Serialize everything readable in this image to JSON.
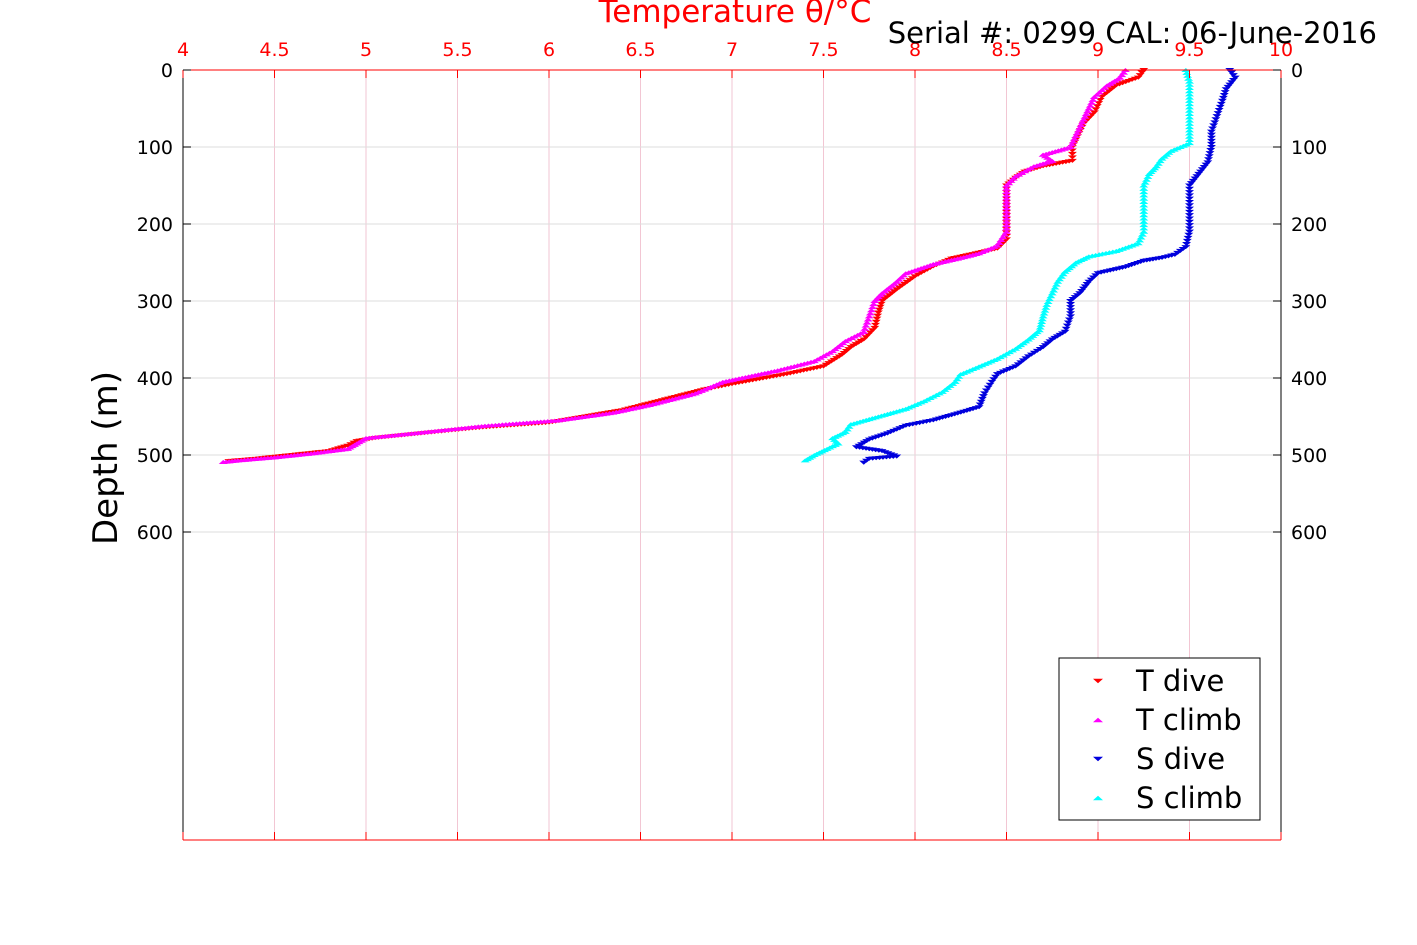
{
  "chart_data": {
    "type": "scatter",
    "title": "Temperature θ/°C",
    "subtitle": "Serial #: 0299 CAL: 06-June-2016",
    "xlabel": "Temperature θ/°C",
    "ylabel": "Depth (m)",
    "xlim": [
      4,
      10
    ],
    "ylim": [
      0,
      1000
    ],
    "y_reversed": true,
    "x_axis_position": "top",
    "x_ticks": [
      "4",
      "4.5",
      "5",
      "5.5",
      "6",
      "6.5",
      "7",
      "7.5",
      "8",
      "8.5",
      "9",
      "9.5",
      "10"
    ],
    "y_ticks": [
      "0",
      "100",
      "200",
      "300",
      "400",
      "500",
      "600"
    ],
    "grid": true,
    "legend_position": "bottom-right",
    "series": [
      {
        "name": "T dive",
        "color": "#ff0000",
        "marker": "triangle-down",
        "points": [
          [
            9.25,
            0
          ],
          [
            9.22,
            10
          ],
          [
            9.1,
            20
          ],
          [
            9.02,
            35
          ],
          [
            8.98,
            55
          ],
          [
            8.92,
            70
          ],
          [
            8.88,
            90
          ],
          [
            8.86,
            100
          ],
          [
            8.86,
            118
          ],
          [
            8.7,
            125
          ],
          [
            8.6,
            132
          ],
          [
            8.55,
            140
          ],
          [
            8.5,
            150
          ],
          [
            8.5,
            180
          ],
          [
            8.5,
            220
          ],
          [
            8.45,
            232
          ],
          [
            8.3,
            240
          ],
          [
            8.2,
            245
          ],
          [
            8.1,
            255
          ],
          [
            8.0,
            268
          ],
          [
            7.9,
            285
          ],
          [
            7.82,
            300
          ],
          [
            7.8,
            315
          ],
          [
            7.78,
            335
          ],
          [
            7.72,
            350
          ],
          [
            7.65,
            360
          ],
          [
            7.6,
            370
          ],
          [
            7.5,
            385
          ],
          [
            7.3,
            395
          ],
          [
            7.0,
            408
          ],
          [
            6.85,
            415
          ],
          [
            6.6,
            430
          ],
          [
            6.4,
            442
          ],
          [
            6.2,
            450
          ],
          [
            6.0,
            458
          ],
          [
            5.6,
            465
          ],
          [
            5.3,
            472
          ],
          [
            5.05,
            478
          ],
          [
            4.95,
            482
          ],
          [
            4.9,
            488
          ],
          [
            4.8,
            495
          ],
          [
            4.6,
            500
          ],
          [
            4.4,
            505
          ],
          [
            4.25,
            508
          ]
        ]
      },
      {
        "name": "T climb",
        "color": "#ff00ff",
        "marker": "triangle-up",
        "points": [
          [
            9.15,
            0
          ],
          [
            9.12,
            10
          ],
          [
            9.05,
            20
          ],
          [
            8.98,
            35
          ],
          [
            8.95,
            50
          ],
          [
            8.9,
            75
          ],
          [
            8.85,
            100
          ],
          [
            8.7,
            110
          ],
          [
            8.75,
            118
          ],
          [
            8.65,
            125
          ],
          [
            8.55,
            138
          ],
          [
            8.5,
            150
          ],
          [
            8.5,
            175
          ],
          [
            8.5,
            210
          ],
          [
            8.45,
            228
          ],
          [
            8.35,
            238
          ],
          [
            8.25,
            244
          ],
          [
            8.1,
            252
          ],
          [
            7.95,
            264
          ],
          [
            7.9,
            275
          ],
          [
            7.82,
            290
          ],
          [
            7.78,
            300
          ],
          [
            7.75,
            320
          ],
          [
            7.72,
            340
          ],
          [
            7.62,
            352
          ],
          [
            7.55,
            365
          ],
          [
            7.45,
            378
          ],
          [
            7.25,
            390
          ],
          [
            6.95,
            405
          ],
          [
            6.8,
            420
          ],
          [
            6.55,
            435
          ],
          [
            6.35,
            445
          ],
          [
            6.05,
            455
          ],
          [
            5.65,
            462
          ],
          [
            5.25,
            472
          ],
          [
            5.0,
            478
          ],
          [
            4.95,
            485
          ],
          [
            4.9,
            492
          ],
          [
            4.7,
            498
          ],
          [
            4.5,
            503
          ],
          [
            4.3,
            507
          ],
          [
            4.22,
            509
          ]
        ]
      },
      {
        "name": "S dive",
        "color": "#0000dd",
        "marker": "triangle-down",
        "points": [
          [
            9.72,
            0
          ],
          [
            9.75,
            10
          ],
          [
            9.7,
            25
          ],
          [
            9.68,
            40
          ],
          [
            9.65,
            60
          ],
          [
            9.62,
            80
          ],
          [
            9.62,
            100
          ],
          [
            9.6,
            120
          ],
          [
            9.55,
            135
          ],
          [
            9.5,
            150
          ],
          [
            9.5,
            180
          ],
          [
            9.5,
            210
          ],
          [
            9.48,
            230
          ],
          [
            9.42,
            240
          ],
          [
            9.35,
            244
          ],
          [
            9.25,
            248
          ],
          [
            9.15,
            256
          ],
          [
            9.0,
            264
          ],
          [
            8.95,
            275
          ],
          [
            8.9,
            290
          ],
          [
            8.85,
            300
          ],
          [
            8.85,
            320
          ],
          [
            8.82,
            340
          ],
          [
            8.75,
            350
          ],
          [
            8.7,
            360
          ],
          [
            8.62,
            372
          ],
          [
            8.55,
            385
          ],
          [
            8.45,
            395
          ],
          [
            8.42,
            405
          ],
          [
            8.38,
            420
          ],
          [
            8.35,
            438
          ],
          [
            8.25,
            445
          ],
          [
            8.1,
            455
          ],
          [
            7.95,
            462
          ],
          [
            7.85,
            472
          ],
          [
            7.75,
            480
          ],
          [
            7.68,
            490
          ],
          [
            7.82,
            495
          ],
          [
            7.9,
            502
          ],
          [
            7.75,
            505
          ],
          [
            7.72,
            510
          ]
        ]
      },
      {
        "name": "S climb",
        "color": "#00ffff",
        "marker": "triangle-up",
        "points": [
          [
            9.48,
            0
          ],
          [
            9.5,
            15
          ],
          [
            9.5,
            40
          ],
          [
            9.5,
            70
          ],
          [
            9.5,
            95
          ],
          [
            9.4,
            105
          ],
          [
            9.35,
            115
          ],
          [
            9.32,
            125
          ],
          [
            9.28,
            135
          ],
          [
            9.25,
            150
          ],
          [
            9.25,
            180
          ],
          [
            9.25,
            210
          ],
          [
            9.22,
            225
          ],
          [
            9.1,
            235
          ],
          [
            8.95,
            242
          ],
          [
            8.88,
            250
          ],
          [
            8.82,
            262
          ],
          [
            8.78,
            275
          ],
          [
            8.75,
            290
          ],
          [
            8.72,
            305
          ],
          [
            8.7,
            320
          ],
          [
            8.68,
            338
          ],
          [
            8.62,
            350
          ],
          [
            8.55,
            362
          ],
          [
            8.45,
            375
          ],
          [
            8.35,
            385
          ],
          [
            8.25,
            395
          ],
          [
            8.22,
            405
          ],
          [
            8.15,
            418
          ],
          [
            8.05,
            430
          ],
          [
            7.95,
            440
          ],
          [
            7.8,
            450
          ],
          [
            7.65,
            460
          ],
          [
            7.62,
            470
          ],
          [
            7.55,
            478
          ],
          [
            7.58,
            485
          ],
          [
            7.52,
            492
          ],
          [
            7.45,
            500
          ],
          [
            7.4,
            507
          ]
        ]
      }
    ]
  }
}
